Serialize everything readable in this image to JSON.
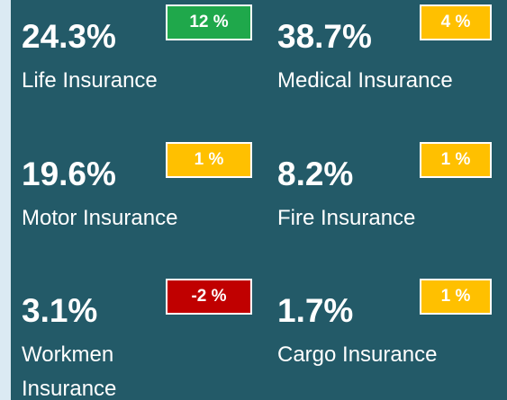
{
  "tiles": [
    {
      "value": "24.3%",
      "label": "Life Insurance",
      "badge": "12 %",
      "badge_color": "#1fa84b"
    },
    {
      "value": "38.7%",
      "label": "Medical Insurance",
      "badge": "4 %",
      "badge_color": "#ffc000"
    },
    {
      "value": "19.6%",
      "label": "Motor Insurance",
      "badge": "1 %",
      "badge_color": "#ffc000"
    },
    {
      "value": "8.2%",
      "label": "Fire Insurance",
      "badge": "1 %",
      "badge_color": "#ffc000"
    },
    {
      "value": "3.1%",
      "label": "Workmen Insurance",
      "badge": "-2 %",
      "badge_color": "#c00000"
    },
    {
      "value": "1.7%",
      "label": "Cargo Insurance",
      "badge": "1 %",
      "badge_color": "#ffc000"
    }
  ]
}
